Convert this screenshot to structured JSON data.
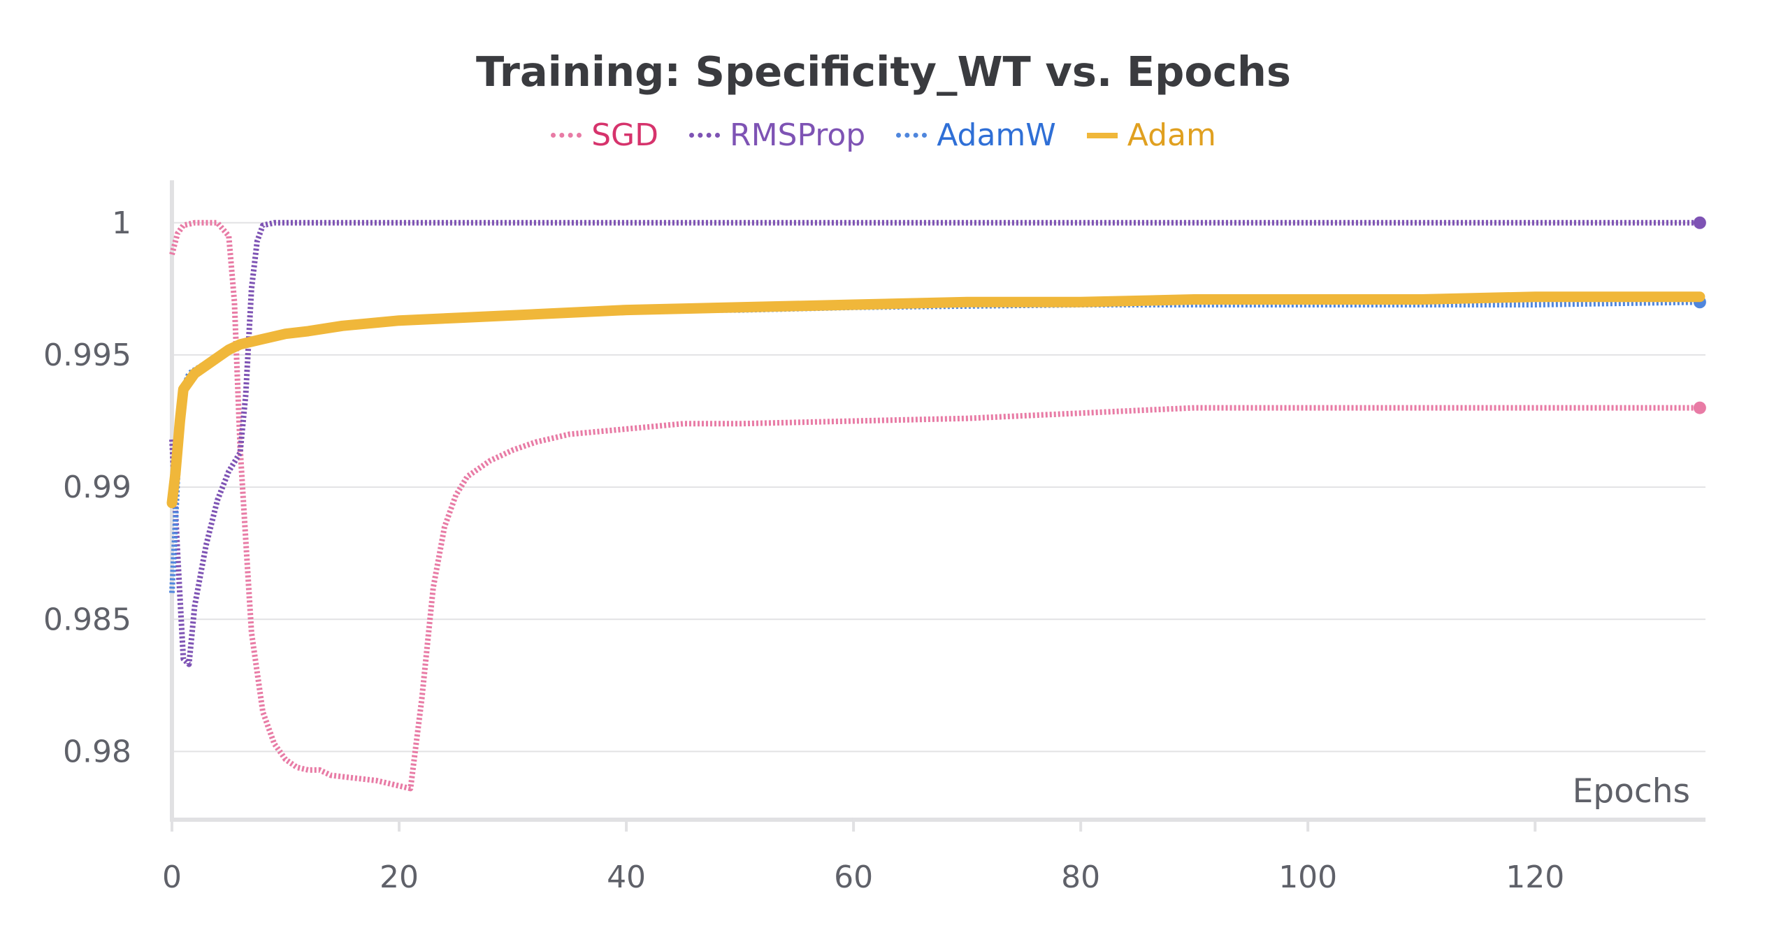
{
  "chart_data": {
    "type": "line",
    "title": "Training: Specificity_WT vs. Epochs",
    "xlabel": "Epochs",
    "ylabel": "",
    "xlim": [
      0,
      135
    ],
    "ylim": [
      0.9775,
      1.0015
    ],
    "x_ticks": [
      0,
      20,
      40,
      60,
      80,
      100,
      120
    ],
    "y_ticks": [
      0.98,
      0.985,
      0.99,
      0.995,
      1
    ],
    "y_tick_labels": [
      "0.98",
      "0.985",
      "0.99",
      "0.995",
      "1"
    ],
    "grid": true,
    "legend_position": "top-center",
    "series": [
      {
        "name": "SGD",
        "color": "#e87ba5",
        "label_color": "#d6336c",
        "style": "dotted",
        "points": [
          [
            0,
            0.9988
          ],
          [
            0.5,
            0.9996
          ],
          [
            1,
            0.9999
          ],
          [
            2,
            1.0
          ],
          [
            3,
            1.0
          ],
          [
            4,
            1.0
          ],
          [
            5,
            0.9995
          ],
          [
            5.5,
            0.997
          ],
          [
            6,
            0.9915
          ],
          [
            6.5,
            0.988
          ],
          [
            7,
            0.9845
          ],
          [
            8,
            0.9815
          ],
          [
            9,
            0.9803
          ],
          [
            10,
            0.9797
          ],
          [
            11,
            0.9794
          ],
          [
            12,
            0.9793
          ],
          [
            13,
            0.9793
          ],
          [
            14,
            0.9791
          ],
          [
            16,
            0.979
          ],
          [
            18,
            0.9789
          ],
          [
            20,
            0.9787
          ],
          [
            21,
            0.9786
          ],
          [
            22,
            0.982
          ],
          [
            23,
            0.9862
          ],
          [
            24,
            0.9885
          ],
          [
            25,
            0.9897
          ],
          [
            26,
            0.9904
          ],
          [
            28,
            0.991
          ],
          [
            30,
            0.9914
          ],
          [
            32,
            0.9917
          ],
          [
            35,
            0.992
          ],
          [
            40,
            0.9922
          ],
          [
            45,
            0.9924
          ],
          [
            50,
            0.9924
          ],
          [
            60,
            0.9925
          ],
          [
            70,
            0.9926
          ],
          [
            80,
            0.9928
          ],
          [
            90,
            0.993
          ],
          [
            100,
            0.993
          ],
          [
            110,
            0.993
          ],
          [
            120,
            0.993
          ],
          [
            134.5,
            0.993
          ]
        ]
      },
      {
        "name": "RMSProp",
        "color": "#7e53b4",
        "label_color": "#7e53b4",
        "style": "dotted",
        "points": [
          [
            0,
            0.9918
          ],
          [
            0.5,
            0.9875
          ],
          [
            1,
            0.9835
          ],
          [
            1.5,
            0.9833
          ],
          [
            2,
            0.9855
          ],
          [
            3,
            0.9878
          ],
          [
            4,
            0.9895
          ],
          [
            5,
            0.9906
          ],
          [
            6,
            0.9913
          ],
          [
            6.5,
            0.9935
          ],
          [
            7,
            0.9975
          ],
          [
            7.5,
            0.9993
          ],
          [
            8,
            0.9999
          ],
          [
            9,
            1.0
          ],
          [
            20,
            1.0
          ],
          [
            60,
            1.0
          ],
          [
            100,
            1.0
          ],
          [
            134.5,
            1.0
          ]
        ]
      },
      {
        "name": "AdamW",
        "color": "#4f86dd",
        "label_color": "#2f6fd6",
        "style": "dotted",
        "points": [
          [
            0,
            0.986
          ],
          [
            0.4,
            0.9895
          ],
          [
            0.8,
            0.9935
          ],
          [
            1.5,
            0.9943
          ],
          [
            3,
            0.9947
          ],
          [
            5,
            0.9952
          ],
          [
            7,
            0.9955
          ],
          [
            10,
            0.9958
          ],
          [
            15,
            0.9961
          ],
          [
            20,
            0.9963
          ],
          [
            30,
            0.9965
          ],
          [
            40,
            0.9967
          ],
          [
            50,
            0.9967
          ],
          [
            60,
            0.9968
          ],
          [
            80,
            0.9969
          ],
          [
            100,
            0.9969
          ],
          [
            120,
            0.9969
          ],
          [
            134.5,
            0.997
          ]
        ]
      },
      {
        "name": "Adam",
        "color": "#f0b73a",
        "label_color": "#e0a020",
        "style": "solid",
        "points": [
          [
            0,
            0.9894
          ],
          [
            0.3,
            0.9905
          ],
          [
            0.7,
            0.9925
          ],
          [
            1,
            0.9937
          ],
          [
            1.5,
            0.994
          ],
          [
            2,
            0.9943
          ],
          [
            3,
            0.9946
          ],
          [
            4,
            0.9949
          ],
          [
            5,
            0.9952
          ],
          [
            6,
            0.9954
          ],
          [
            8,
            0.9956
          ],
          [
            10,
            0.9958
          ],
          [
            12,
            0.9959
          ],
          [
            15,
            0.9961
          ],
          [
            20,
            0.9963
          ],
          [
            25,
            0.9964
          ],
          [
            30,
            0.9965
          ],
          [
            40,
            0.9967
          ],
          [
            50,
            0.9968
          ],
          [
            60,
            0.9969
          ],
          [
            70,
            0.997
          ],
          [
            80,
            0.997
          ],
          [
            90,
            0.9971
          ],
          [
            100,
            0.9971
          ],
          [
            110,
            0.9971
          ],
          [
            120,
            0.9972
          ],
          [
            134.5,
            0.9972
          ]
        ]
      }
    ]
  }
}
